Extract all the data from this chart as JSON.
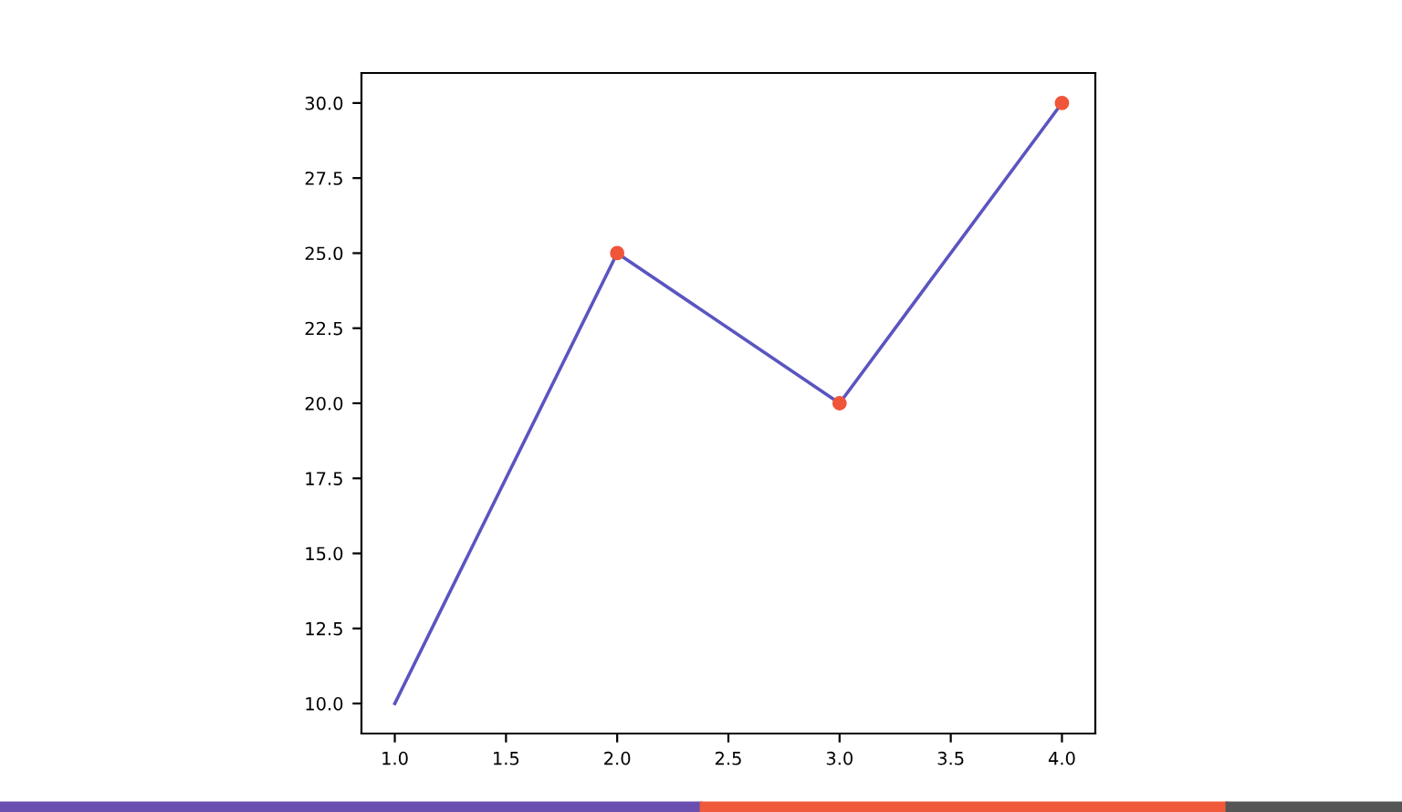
{
  "chart_data": {
    "type": "line",
    "x": [
      1,
      2,
      3,
      4
    ],
    "series": [
      {
        "color": "#5a55c0",
        "values": [
          10,
          25,
          20,
          30
        ],
        "marker": "none"
      },
      {
        "type": "scatter",
        "color": "#f0553a",
        "x": [
          2,
          3,
          4
        ],
        "values": [
          25,
          20,
          30
        ],
        "marker": "circle"
      }
    ],
    "xlim": [
      0.85,
      4.15
    ],
    "xticks": [
      {
        "value": 1,
        "label": "1.0"
      },
      {
        "value": 1.5,
        "label": "1.5"
      },
      {
        "value": 2,
        "label": "2.0"
      },
      {
        "value": 2.5,
        "label": "2.5"
      },
      {
        "value": 3,
        "label": "3.0"
      },
      {
        "value": 3.5,
        "label": "3.5"
      },
      {
        "value": 4,
        "label": "4.0"
      }
    ],
    "ylim": [
      9,
      31
    ],
    "yticks": [
      {
        "value": 10,
        "label": "10.0"
      },
      {
        "value": 12.5,
        "label": "12.5"
      },
      {
        "value": 15,
        "label": "15.0"
      },
      {
        "value": 17.5,
        "label": "17.5"
      },
      {
        "value": 20,
        "label": "20.0"
      },
      {
        "value": 22.5,
        "label": "22.5"
      },
      {
        "value": 25,
        "label": "25.0"
      },
      {
        "value": 27.5,
        "label": "27.5"
      },
      {
        "value": 30,
        "label": "30.0"
      }
    ],
    "grid": false,
    "legend": false
  }
}
